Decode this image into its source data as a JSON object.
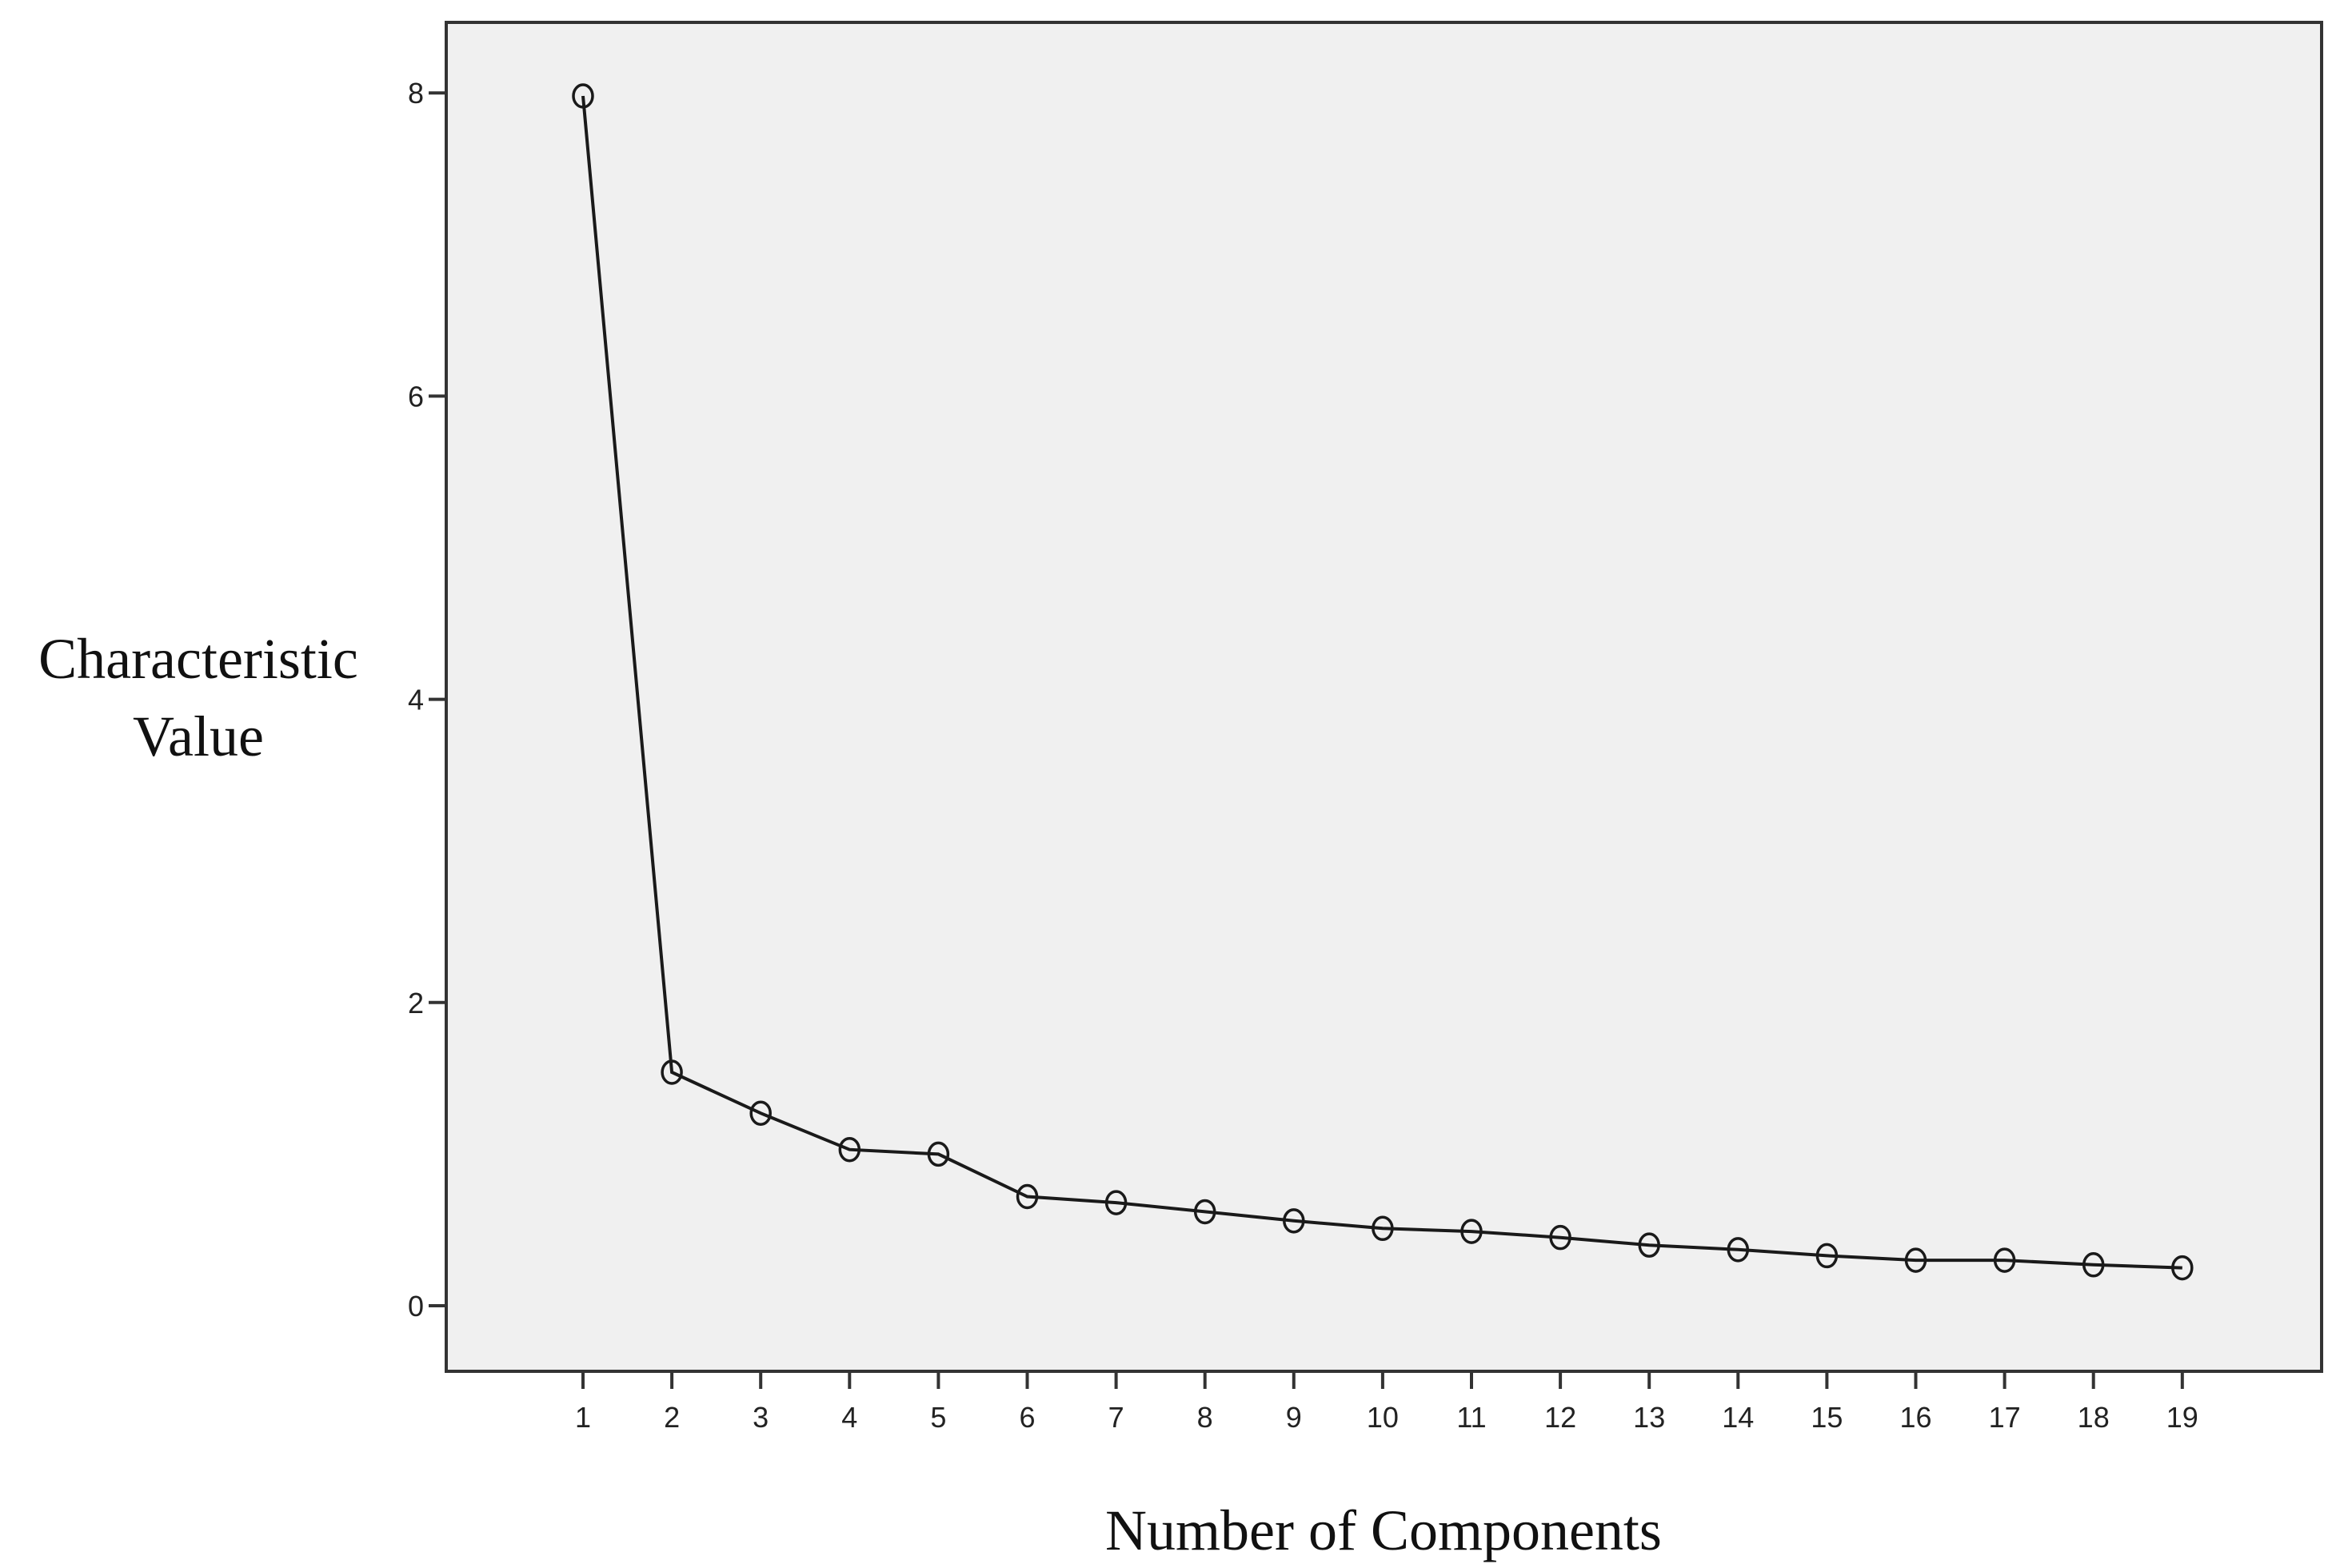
{
  "chart_data": {
    "type": "line",
    "title": "",
    "xlabel": "Number of Components",
    "ylabel": "Characteristic Value",
    "ylabel_lines": [
      "Characteristic",
      "Value"
    ],
    "x": [
      1,
      2,
      3,
      4,
      5,
      6,
      7,
      8,
      9,
      10,
      11,
      12,
      13,
      14,
      15,
      16,
      17,
      18,
      19
    ],
    "values": [
      7.98,
      1.54,
      1.27,
      1.03,
      1.0,
      0.72,
      0.68,
      0.62,
      0.56,
      0.51,
      0.49,
      0.45,
      0.4,
      0.37,
      0.33,
      0.3,
      0.3,
      0.27,
      0.25
    ],
    "x_ticks": [
      "1",
      "2",
      "3",
      "4",
      "5",
      "6",
      "7",
      "8",
      "9",
      "10",
      "11",
      "12",
      "13",
      "14",
      "15",
      "16",
      "17",
      "18",
      "19"
    ],
    "y_ticks": [
      "0",
      "2",
      "4",
      "6",
      "8"
    ],
    "ylim": [
      -0.45,
      8.45
    ],
    "grid": false,
    "legend": null,
    "marker": "open-circle",
    "colors": {
      "plot_background": "#f0f0f0",
      "line": "#1a1a1a",
      "frame": "#333333"
    }
  }
}
